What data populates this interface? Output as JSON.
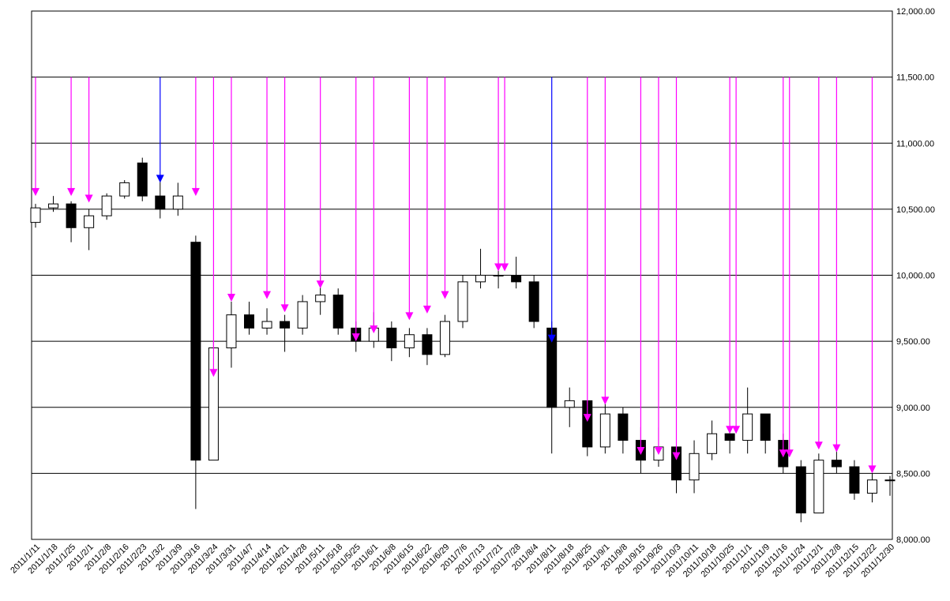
{
  "chart_data": {
    "type": "candlestick",
    "categories": [
      "2011/1/11",
      "2011/1/18",
      "2011/1/25",
      "2011/2/1",
      "2011/2/8",
      "2011/2/16",
      "2011/2/23",
      "2011/3/2",
      "2011/3/9",
      "2011/3/16",
      "2011/3/24",
      "2011/3/31",
      "2011/4/7",
      "2011/4/14",
      "2011/4/21",
      "2011/4/28",
      "2011/5/11",
      "2011/5/18",
      "2011/5/25",
      "2011/6/1",
      "2011/6/8",
      "2011/6/15",
      "2011/6/22",
      "2011/6/29",
      "2011/7/6",
      "2011/7/13",
      "2011/7/21",
      "2011/7/28",
      "2011/8/4",
      "2011/8/11",
      "2011/8/18",
      "2011/8/25",
      "2011/9/1",
      "2011/9/8",
      "2011/9/15",
      "2011/9/26",
      "2011/10/3",
      "2011/10/11",
      "2011/10/18",
      "2011/10/25",
      "2011/11/1",
      "2011/11/9",
      "2011/11/16",
      "2011/11/24",
      "2011/12/1",
      "2011/12/8",
      "2011/12/15",
      "2011/12/22",
      "2011/12/30"
    ],
    "open": [
      10400,
      10510,
      10540,
      10360,
      10450,
      10600,
      10850,
      10600,
      10500,
      10250,
      8600,
      9450,
      9700,
      9600,
      9650,
      9600,
      9800,
      9850,
      9600,
      9500,
      9600,
      9450,
      9550,
      9400,
      9650,
      9950,
      10000,
      10000,
      9950,
      9600,
      9000,
      9050,
      8700,
      8950,
      8750,
      8600,
      8700,
      8450,
      8650,
      8800,
      8750,
      8950,
      8750,
      8550,
      8200,
      8600,
      8550,
      8350,
      8450
    ],
    "high": [
      10540,
      10600,
      10560,
      10500,
      10620,
      10720,
      10890,
      10760,
      10700,
      10300,
      9500,
      9800,
      9800,
      9750,
      9700,
      9850,
      10020,
      9900,
      9650,
      9720,
      9650,
      9600,
      9600,
      9700,
      10000,
      10200,
      10100,
      10140,
      10000,
      9650,
      9150,
      9050,
      9080,
      9000,
      8850,
      8850,
      8750,
      8750,
      8900,
      8850,
      9150,
      8950,
      8800,
      8600,
      8650,
      8720,
      8600,
      8500,
      8480
    ],
    "low": [
      10360,
      10480,
      10250,
      10190,
      10420,
      10580,
      10560,
      10430,
      10450,
      8230,
      8600,
      9300,
      9550,
      9550,
      9420,
      9550,
      9700,
      9550,
      9420,
      9450,
      9350,
      9380,
      9320,
      9380,
      9600,
      9900,
      9900,
      9900,
      9600,
      8650,
      8850,
      8630,
      8650,
      8650,
      8500,
      8550,
      8350,
      8350,
      8600,
      8650,
      8650,
      8650,
      8500,
      8130,
      8200,
      8500,
      8300,
      8280,
      8330
    ],
    "close": [
      10510,
      10540,
      10360,
      10450,
      10600,
      10700,
      10600,
      10500,
      10600,
      8600,
      9450,
      9700,
      9600,
      9650,
      9600,
      9800,
      9850,
      9600,
      9500,
      9600,
      9450,
      9550,
      9400,
      9650,
      9950,
      10000,
      10000,
      9950,
      9650,
      9000,
      9050,
      8700,
      8950,
      8750,
      8600,
      8700,
      8450,
      8650,
      8800,
      8750,
      8950,
      8750,
      8550,
      8200,
      8600,
      8550,
      8350,
      8450,
      8450
    ],
    "up_color": "#ffffff",
    "down_color": "#000000",
    "arrows": [
      {
        "at": "2011/1/11",
        "value": 10600,
        "color": "#ff00ff"
      },
      {
        "at": "2011/1/25",
        "value": 10600,
        "color": "#ff00ff"
      },
      {
        "at": "2011/2/1",
        "value": 10550,
        "color": "#ff00ff"
      },
      {
        "at": "2011/3/2",
        "value": 10700,
        "color": "#0000ff"
      },
      {
        "at": "2011/3/16",
        "value": 10600,
        "color": "#ff00ff"
      },
      {
        "at": "2011/3/24",
        "value": 9230,
        "color": "#ff00ff"
      },
      {
        "at": "2011/3/31",
        "value": 9800,
        "color": "#ff00ff"
      },
      {
        "at": "2011/4/14",
        "value": 9820,
        "color": "#ff00ff"
      },
      {
        "at": "2011/4/21",
        "value": 9720,
        "color": "#ff00ff"
      },
      {
        "at": "2011/5/11",
        "value": 9900,
        "color": "#ff00ff"
      },
      {
        "at": "2011/5/25",
        "value": 9500,
        "color": "#ff00ff"
      },
      {
        "at": "2011/6/1",
        "value": 9560,
        "color": "#ff00ff"
      },
      {
        "at": "2011/6/15",
        "value": 9660,
        "color": "#ff00ff"
      },
      {
        "at": "2011/6/22",
        "value": 9710,
        "color": "#ff00ff"
      },
      {
        "at": "2011/6/29",
        "value": 9820,
        "color": "#ff00ff"
      },
      {
        "at": "2011/7/21",
        "value": 10030,
        "color": "#ff00ff"
      },
      {
        "at": "2011/7/21",
        "value": 10030,
        "color": "#ff00ff"
      },
      {
        "at": "2011/8/11",
        "value": 9490,
        "color": "#0000ff"
      },
      {
        "at": "2011/8/25",
        "value": 8890,
        "color": "#ff00ff"
      },
      {
        "at": "2011/9/1",
        "value": 9020,
        "color": "#ff00ff"
      },
      {
        "at": "2011/9/15",
        "value": 8640,
        "color": "#ff00ff"
      },
      {
        "at": "2011/9/26",
        "value": 8640,
        "color": "#ff00ff"
      },
      {
        "at": "2011/10/3",
        "value": 8600,
        "color": "#ff00ff"
      },
      {
        "at": "2011/10/25",
        "value": 8800,
        "color": "#ff00ff"
      },
      {
        "at": "2011/10/25",
        "value": 8800,
        "color": "#ff00ff"
      },
      {
        "at": "2011/11/16",
        "value": 8620,
        "color": "#ff00ff"
      },
      {
        "at": "2011/11/16",
        "value": 8620,
        "color": "#ff00ff"
      },
      {
        "at": "2011/12/1",
        "value": 8680,
        "color": "#ff00ff"
      },
      {
        "at": "2011/12/8",
        "value": 8660,
        "color": "#ff00ff"
      },
      {
        "at": "2011/12/22",
        "value": 8500,
        "color": "#ff00ff"
      }
    ],
    "arrow_top": 11500,
    "ylim": [
      8000,
      12000
    ],
    "yticks": [
      {
        "value": 8000,
        "label": "8,000.00"
      },
      {
        "value": 8500,
        "label": "8,500.00"
      },
      {
        "value": 9000,
        "label": "9,000.00"
      },
      {
        "value": 9500,
        "label": "9,500.00"
      },
      {
        "value": 10000,
        "label": "10,000.00"
      },
      {
        "value": 10500,
        "label": "10,500.00"
      },
      {
        "value": 11000,
        "label": "11,000.00"
      },
      {
        "value": 11500,
        "label": "11,500.00"
      },
      {
        "value": 12000,
        "label": "12,000.00"
      }
    ],
    "grid": true
  }
}
